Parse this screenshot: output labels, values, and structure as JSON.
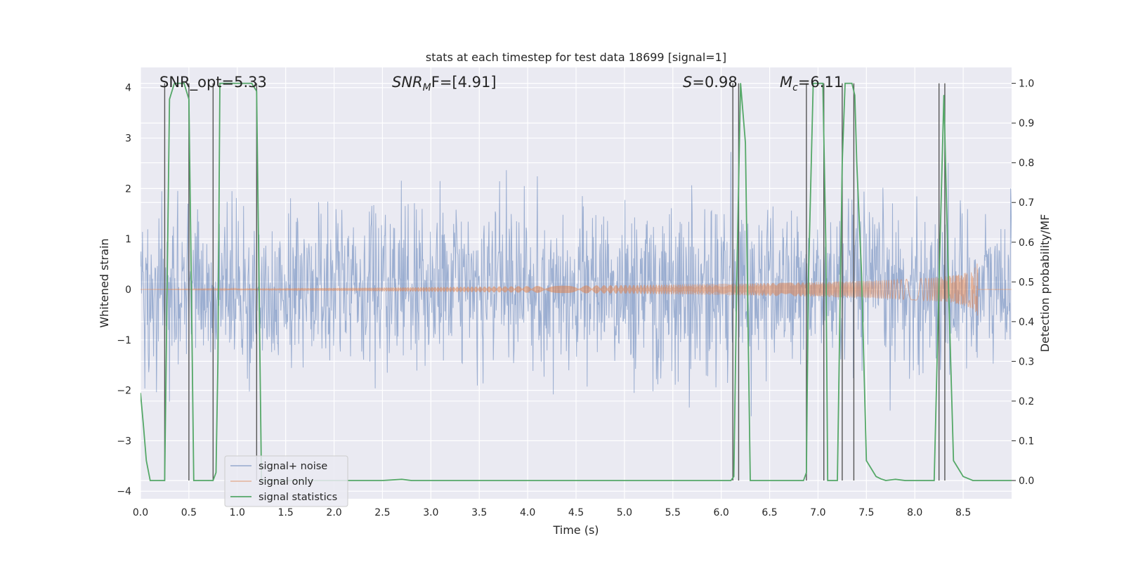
{
  "chart_data": {
    "type": "line",
    "title": "stats at each timestep for test data 18699 [signal=1]",
    "xlabel": "Time (s)",
    "ylabel_left": "Whitened strain",
    "ylabel_right": "Detection probability/MF",
    "xlim": [
      0.0,
      9.0
    ],
    "ylim_left": [
      -4.15,
      4.4
    ],
    "ylim_right": [
      -0.046,
      1.04
    ],
    "x_ticks": [
      "0.0",
      "0.5",
      "1.0",
      "1.5",
      "2.0",
      "2.5",
      "3.0",
      "3.5",
      "4.0",
      "4.5",
      "5.0",
      "5.5",
      "6.0",
      "6.5",
      "7.0",
      "7.5",
      "8.0",
      "8.5"
    ],
    "y_left_ticks": [
      "4",
      "3",
      "2",
      "1",
      "0",
      "−1",
      "−2",
      "−3",
      "−4"
    ],
    "y_right_ticks": [
      "1.0",
      "0.9",
      "0.8",
      "0.7",
      "0.6",
      "0.5",
      "0.4",
      "0.3",
      "0.2",
      "0.1",
      "0.0"
    ],
    "grid": true,
    "annotations": {
      "snr_opt": "SNR_opt=5.33",
      "snr_mf_prefix": "SNR",
      "snr_mf_sub": "M",
      "snr_mf_suffix": "F=[4.91]",
      "s_prefix": "S",
      "s_suffix": "=0.98",
      "mc_prefix": "M",
      "mc_sub": "c",
      "mc_suffix": "=6.11"
    },
    "series": [
      {
        "name": "signal+ noise",
        "color": "#4c72b0",
        "kind": "noise",
        "amplitude_sigma": 0.8,
        "range": [
          -4.0,
          4.0
        ]
      },
      {
        "name": "signal only",
        "color": "#dd8452",
        "kind": "chirp",
        "end_time": 8.65,
        "peak_amplitude": 0.55
      },
      {
        "name": "signal statistics",
        "color": "#55a868",
        "kind": "probability",
        "x": [
          0.0,
          0.03,
          0.06,
          0.1,
          0.2,
          0.24,
          0.25,
          0.3,
          0.35,
          0.4,
          0.45,
          0.5,
          0.52,
          0.55,
          0.6,
          0.7,
          0.75,
          0.78,
          0.8,
          0.82,
          0.9,
          1.0,
          1.1,
          1.15,
          1.2,
          1.25,
          1.3,
          1.4,
          2.5,
          2.7,
          2.8,
          6.0,
          6.1,
          6.13,
          6.16,
          6.2,
          6.25,
          6.3,
          6.35,
          6.4,
          6.8,
          6.85,
          6.88,
          6.9,
          6.95,
          7.0,
          7.05,
          7.08,
          7.1,
          7.15,
          7.2,
          7.25,
          7.28,
          7.3,
          7.35,
          7.38,
          7.4,
          7.45,
          7.5,
          7.55,
          7.6,
          7.65,
          7.7,
          7.8,
          7.9,
          8.0,
          8.1,
          8.2,
          8.25,
          8.3,
          8.35,
          8.4,
          8.45,
          8.5,
          8.6,
          8.65,
          8.8,
          9.0
        ],
        "y": [
          0.22,
          0.14,
          0.05,
          0.0,
          0.0,
          0.0,
          0.0,
          0.96,
          1.0,
          1.0,
          1.0,
          0.96,
          0.6,
          0.0,
          0.0,
          0.0,
          0.0,
          0.02,
          0.3,
          1.0,
          1.0,
          1.0,
          1.0,
          1.0,
          0.98,
          0.0,
          0.0,
          0.0,
          0.0,
          0.003,
          0.0,
          0.0,
          0.0,
          0.01,
          0.5,
          1.0,
          0.85,
          0.0,
          0.0,
          0.0,
          0.0,
          0.0,
          0.02,
          0.5,
          1.0,
          1.0,
          1.0,
          0.6,
          0.0,
          0.0,
          0.0,
          0.8,
          1.0,
          1.0,
          1.0,
          0.97,
          0.8,
          0.52,
          0.05,
          0.03,
          0.01,
          0.004,
          0.0,
          0.003,
          0.0,
          0.0,
          0.0,
          0.0,
          0.5,
          0.97,
          0.48,
          0.05,
          0.03,
          0.01,
          0.0,
          0.0,
          0.0,
          0.0
        ]
      }
    ],
    "vertical_markers": [
      0.25,
      0.5,
      0.75,
      1.2,
      6.12,
      6.18,
      6.88,
      7.06,
      7.25,
      7.37,
      8.25,
      8.31
    ]
  }
}
